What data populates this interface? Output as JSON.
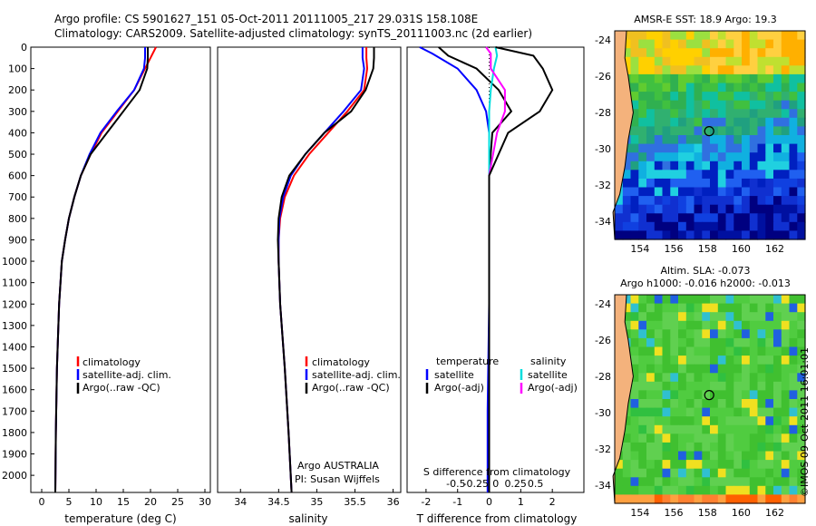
{
  "header": {
    "line1": "Argo profile: CS 5901627_151 05-Oct-2011 20111005_217 29.031S 158.108E",
    "line2": "Climatology: CARS2009. Satellite-adjusted climatology: synTS_20111003.nc (2d earlier)"
  },
  "colors": {
    "clim": "#ff0000",
    "sat": "#0000ff",
    "argo": "#000000",
    "sat_s": "#00dddd",
    "argo_s": "#ff00ff",
    "land": "#f4b27c"
  },
  "chart_data": [
    {
      "type": "line",
      "id": "temp",
      "xlabel": "temperature (deg C)",
      "ylabel": "",
      "xlim": [
        -2,
        31
      ],
      "ylim": [
        2080,
        0
      ],
      "xticks": [
        0,
        5,
        10,
        15,
        20,
        25,
        30
      ],
      "yticks": [
        0,
        100,
        200,
        300,
        400,
        500,
        600,
        700,
        800,
        900,
        1000,
        1100,
        1200,
        1300,
        1400,
        1500,
        1600,
        1700,
        1800,
        1900,
        2000
      ],
      "legend": [
        "climatology",
        "satellite-adj. clim.",
        "Argo(..raw -QC)"
      ],
      "series": [
        {
          "name": "climatology",
          "color": "#ff0000",
          "x": [
            21,
            20,
            19,
            17,
            14,
            11,
            9,
            7.2,
            6,
            5,
            4.3,
            3.7,
            3.2,
            2.8,
            2.6,
            2.5
          ],
          "y": [
            0,
            50,
            100,
            200,
            300,
            400,
            500,
            600,
            700,
            800,
            900,
            1000,
            1200,
            1500,
            1800,
            2080
          ]
        },
        {
          "name": "satellite-adj. clim.",
          "color": "#0000ff",
          "x": [
            19,
            19,
            18.8,
            17,
            13.8,
            10.8,
            8.8,
            7.2,
            6,
            5,
            4.3,
            3.7,
            3.2,
            2.8,
            2.6,
            2.5
          ],
          "y": [
            0,
            50,
            100,
            200,
            300,
            400,
            500,
            600,
            700,
            800,
            900,
            1000,
            1200,
            1500,
            1800,
            2080
          ]
        },
        {
          "name": "Argo(..raw -QC)",
          "color": "#000000",
          "x": [
            19.5,
            19.5,
            19.4,
            18,
            15,
            12,
            9,
            7.2,
            6,
            5,
            4.3,
            3.7,
            3.2,
            2.8,
            2.6,
            2.5
          ],
          "y": [
            0,
            50,
            100,
            200,
            300,
            400,
            500,
            600,
            700,
            800,
            900,
            1000,
            1200,
            1500,
            1800,
            2080
          ]
        }
      ]
    },
    {
      "type": "line",
      "id": "sal",
      "xlabel": "salinity",
      "ylabel": "",
      "xlim": [
        33.7,
        36.1
      ],
      "ylim": [
        2080,
        0
      ],
      "xticks": [
        34,
        34.5,
        35,
        35.5,
        36
      ],
      "yticks": [],
      "legend": [
        "climatology",
        "satellite-adj. clim.",
        "Argo(..raw -QC)"
      ],
      "annotation": [
        "Argo AUSTRALIA",
        "PI: Susan Wijffels"
      ],
      "series": [
        {
          "name": "climatology",
          "color": "#ff0000",
          "x": [
            35.65,
            35.65,
            35.66,
            35.62,
            35.4,
            35.15,
            34.9,
            34.7,
            34.58,
            34.52,
            34.5,
            34.5,
            34.52,
            34.58,
            34.63,
            34.67
          ],
          "y": [
            0,
            50,
            100,
            200,
            300,
            400,
            500,
            600,
            700,
            800,
            900,
            1000,
            1200,
            1500,
            1800,
            2080
          ]
        },
        {
          "name": "satellite-adj. clim.",
          "color": "#0000ff",
          "x": [
            35.6,
            35.6,
            35.62,
            35.58,
            35.35,
            35.1,
            34.85,
            34.66,
            34.56,
            34.51,
            34.5,
            34.5,
            34.52,
            34.58,
            34.63,
            34.67
          ],
          "y": [
            0,
            50,
            100,
            200,
            300,
            400,
            500,
            600,
            700,
            800,
            900,
            1000,
            1200,
            1500,
            1800,
            2080
          ]
        },
        {
          "name": "Argo(..raw -QC)",
          "color": "#000000",
          "x": [
            35.75,
            35.75,
            35.74,
            35.64,
            35.45,
            35.1,
            34.85,
            34.64,
            34.54,
            34.5,
            34.49,
            34.5,
            34.52,
            34.58,
            34.63,
            34.67
          ],
          "y": [
            0,
            50,
            100,
            200,
            300,
            400,
            500,
            600,
            700,
            800,
            900,
            1000,
            1200,
            1500,
            1800,
            2080
          ]
        }
      ]
    },
    {
      "type": "line",
      "id": "diff",
      "xlabel": "T difference from climatology",
      "xlabel_top": "S difference from climatology",
      "xlim": [
        -2.6,
        3
      ],
      "ylim": [
        2080,
        0
      ],
      "xticks": [
        -2,
        -1,
        0,
        1,
        2
      ],
      "xticks_top": [
        -0.5,
        -0.25,
        0,
        0.25,
        0.5
      ],
      "xticks_top_labels": [
        "-0.5",
        "-0.25",
        "0",
        "0.25",
        "0.5"
      ],
      "legend_left_title": "temperature",
      "legend_right_title": "salinity",
      "legend": [
        "satellite",
        "Argo(-adj)",
        "satellite",
        "Argo(-adj)"
      ],
      "series": [
        {
          "name": "T satellite",
          "color": "#0000ff",
          "x": [
            -2.2,
            -1.8,
            -1,
            -0.4,
            -0.1,
            0,
            0,
            0,
            0,
            -0.05,
            -0.05
          ],
          "y": [
            0,
            30,
            100,
            200,
            300,
            400,
            600,
            900,
            1200,
            1700,
            2080
          ]
        },
        {
          "name": "T Argo(-adj)",
          "color": "#000000",
          "x": [
            -1.6,
            -1.3,
            -0.4,
            0.3,
            0.7,
            0.1,
            0,
            0,
            0,
            0,
            0
          ],
          "y": [
            0,
            40,
            100,
            200,
            300,
            400,
            600,
            900,
            1200,
            1700,
            2080
          ]
        },
        {
          "name": "S satellite",
          "color": "#00dddd",
          "x": [
            0.2,
            0.25,
            0.15,
            0.05,
            0,
            0,
            0,
            0,
            0,
            0,
            0
          ],
          "y": [
            0,
            40,
            100,
            200,
            300,
            400,
            600,
            900,
            1200,
            1700,
            2080
          ]
        },
        {
          "name": "S Argo(-adj)",
          "color": "#ff00ff",
          "x": [
            -0.1,
            0.05,
            0.05,
            0.5,
            0.5,
            0.25,
            0,
            0,
            0,
            0,
            0
          ],
          "y": [
            0,
            30,
            100,
            200,
            300,
            400,
            600,
            900,
            1200,
            1700,
            2080
          ]
        },
        {
          "name": "S Argo black",
          "color": "#000000",
          "x": [
            0.2,
            1.4,
            1.7,
            2.0,
            1.6,
            0.6,
            0,
            0,
            0,
            0,
            0
          ],
          "y": [
            0,
            40,
            100,
            200,
            300,
            400,
            600,
            900,
            1200,
            1700,
            2080
          ]
        }
      ]
    },
    {
      "type": "heatmap",
      "id": "sst",
      "title": "AMSR-E SST: 18.9  Argo: 19.3",
      "xlim": [
        152.5,
        163.8
      ],
      "ylim": [
        -35,
        -23.5
      ],
      "xticks": [
        154,
        156,
        158,
        160,
        162
      ],
      "yticks": [
        -24,
        -26,
        -28,
        -30,
        -32,
        -34
      ],
      "marker": {
        "lon": 158.108,
        "lat": -29.031
      }
    },
    {
      "type": "heatmap",
      "id": "sla",
      "title1": "Altim. SLA: -0.073",
      "title2": "Argo h1000: -0.016 h2000: -0.013",
      "xlim": [
        152.5,
        163.8
      ],
      "ylim": [
        -35,
        -23.5
      ],
      "xticks": [
        154,
        156,
        158,
        160,
        162
      ],
      "yticks": [
        -24,
        -26,
        -28,
        -30,
        -32,
        -34
      ],
      "marker": {
        "lon": 158.108,
        "lat": -29.031
      }
    }
  ],
  "watermark": "©IMOS 09-Oct-2011 16:01:01"
}
